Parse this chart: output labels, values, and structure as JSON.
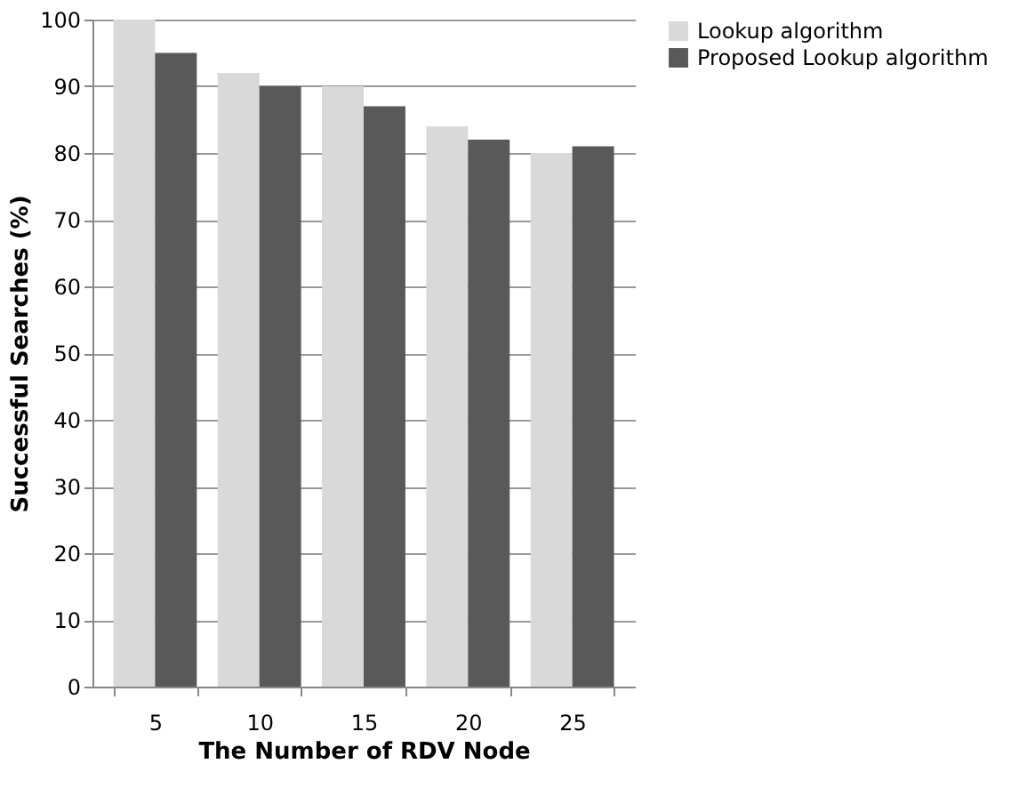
{
  "chart_data": {
    "type": "bar",
    "xlabel": "The Number of RDV Node",
    "ylabel": "Successful Searches (%)",
    "categories": [
      "5",
      "10",
      "15",
      "20",
      "25"
    ],
    "series": [
      {
        "name": "Lookup algorithm",
        "color": "#d9d9d9",
        "values": [
          100,
          92,
          90,
          84,
          80
        ]
      },
      {
        "name": "Proposed Lookup algorithm",
        "color": "#595959",
        "values": [
          95,
          90,
          87,
          82,
          81
        ]
      }
    ],
    "ylim": [
      0,
      100
    ],
    "yticks": [
      0,
      10,
      20,
      30,
      40,
      50,
      60,
      70,
      80,
      90,
      100
    ],
    "grid": "y",
    "legend": "top right"
  }
}
